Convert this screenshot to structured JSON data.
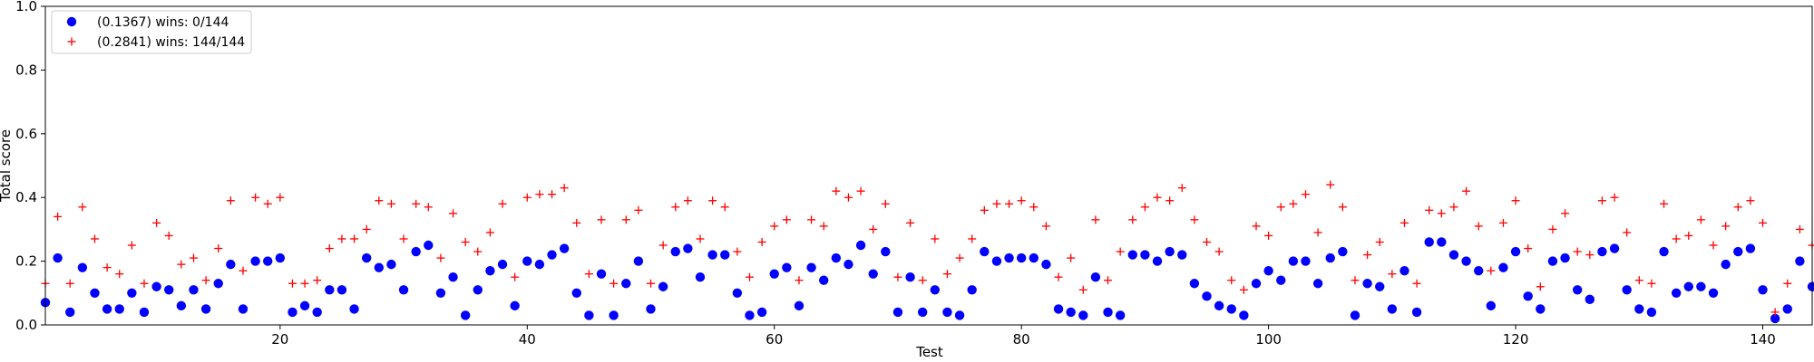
{
  "chart_data": {
    "type": "scatter",
    "xlabel": "Test",
    "ylabel": "Total score",
    "xlim": [
      1,
      144
    ],
    "ylim": [
      0,
      1.0
    ],
    "xticks": [
      20,
      40,
      60,
      80,
      100,
      120,
      140
    ],
    "yticks": [
      0.0,
      0.2,
      0.4,
      0.6,
      0.8,
      1.0
    ],
    "legend_position": "top-left",
    "grid": false,
    "series": [
      {
        "name": "(0.1367) wins: 0/144",
        "marker": "circle",
        "color": "#0000ff",
        "values": [
          0.07,
          0.21,
          0.04,
          0.18,
          0.1,
          0.05,
          0.05,
          0.1,
          0.04,
          0.12,
          0.11,
          0.06,
          0.11,
          0.05,
          0.13,
          0.19,
          0.05,
          0.2,
          0.2,
          0.21,
          0.04,
          0.06,
          0.04,
          0.11,
          0.11,
          0.05,
          0.21,
          0.18,
          0.19,
          0.11,
          0.23,
          0.25,
          0.1,
          0.15,
          0.03,
          0.11,
          0.17,
          0.19,
          0.06,
          0.2,
          0.19,
          0.22,
          0.24,
          0.1,
          0.03,
          0.16,
          0.03,
          0.13,
          0.2,
          0.05,
          0.12,
          0.23,
          0.24,
          0.15,
          0.22,
          0.22,
          0.1,
          0.03,
          0.04,
          0.16,
          0.18,
          0.06,
          0.18,
          0.14,
          0.21,
          0.19,
          0.25,
          0.16,
          0.23,
          0.04,
          0.15,
          0.04,
          0.11,
          0.04,
          0.03,
          0.11,
          0.23,
          0.2,
          0.21,
          0.21,
          0.21,
          0.19,
          0.05,
          0.04,
          0.03,
          0.15,
          0.04,
          0.03,
          0.22,
          0.22,
          0.2,
          0.23,
          0.22,
          0.13,
          0.09,
          0.06,
          0.05,
          0.03,
          0.13,
          0.17,
          0.14,
          0.2,
          0.2,
          0.13,
          0.21,
          0.23,
          0.03,
          0.13,
          0.12,
          0.05,
          0.17,
          0.04,
          0.26,
          0.26,
          0.22,
          0.2,
          0.17,
          0.06,
          0.18,
          0.23,
          0.09,
          0.05,
          0.2,
          0.21,
          0.11,
          0.08,
          0.23,
          0.24,
          0.11,
          0.05,
          0.04,
          0.23,
          0.1,
          0.12,
          0.12,
          0.1,
          0.19,
          0.23,
          0.24,
          0.11,
          0.02,
          0.05,
          0.2,
          0.12
        ]
      },
      {
        "name": "(0.2841) wins: 144/144",
        "marker": "plus",
        "color": "#ff0000",
        "values": [
          0.13,
          0.34,
          0.13,
          0.37,
          0.27,
          0.18,
          0.16,
          0.25,
          0.13,
          0.32,
          0.28,
          0.19,
          0.21,
          0.14,
          0.24,
          0.39,
          0.17,
          0.4,
          0.38,
          0.4,
          0.13,
          0.13,
          0.14,
          0.24,
          0.27,
          0.27,
          0.3,
          0.39,
          0.38,
          0.27,
          0.38,
          0.37,
          0.21,
          0.35,
          0.26,
          0.23,
          0.29,
          0.38,
          0.15,
          0.4,
          0.41,
          0.41,
          0.43,
          0.32,
          0.16,
          0.33,
          0.13,
          0.33,
          0.36,
          0.13,
          0.25,
          0.37,
          0.39,
          0.27,
          0.39,
          0.37,
          0.23,
          0.15,
          0.26,
          0.31,
          0.33,
          0.14,
          0.33,
          0.31,
          0.42,
          0.4,
          0.42,
          0.3,
          0.38,
          0.15,
          0.32,
          0.14,
          0.27,
          0.16,
          0.21,
          0.27,
          0.36,
          0.38,
          0.38,
          0.39,
          0.37,
          0.31,
          0.15,
          0.21,
          0.11,
          0.33,
          0.14,
          0.23,
          0.33,
          0.37,
          0.4,
          0.39,
          0.43,
          0.33,
          0.26,
          0.23,
          0.14,
          0.11,
          0.31,
          0.28,
          0.37,
          0.38,
          0.41,
          0.29,
          0.44,
          0.37,
          0.14,
          0.22,
          0.26,
          0.16,
          0.32,
          0.13,
          0.36,
          0.35,
          0.37,
          0.42,
          0.31,
          0.17,
          0.32,
          0.39,
          0.24,
          0.12,
          0.3,
          0.35,
          0.23,
          0.22,
          0.39,
          0.4,
          0.29,
          0.14,
          0.13,
          0.38,
          0.27,
          0.28,
          0.33,
          0.25,
          0.31,
          0.37,
          0.39,
          0.32,
          0.04,
          0.13,
          0.3,
          0.25
        ]
      }
    ]
  }
}
